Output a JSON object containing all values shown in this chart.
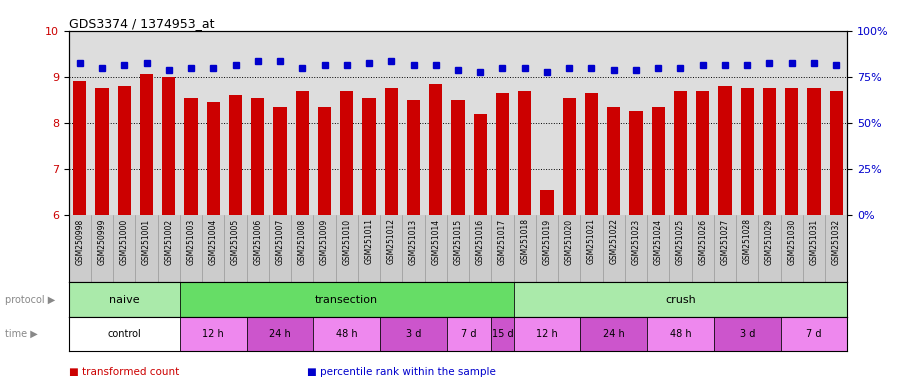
{
  "title": "GDS3374 / 1374953_at",
  "samples": [
    "GSM250998",
    "GSM250999",
    "GSM251000",
    "GSM251001",
    "GSM251002",
    "GSM251003",
    "GSM251004",
    "GSM251005",
    "GSM251006",
    "GSM251007",
    "GSM251008",
    "GSM251009",
    "GSM251010",
    "GSM251011",
    "GSM251012",
    "GSM251013",
    "GSM251014",
    "GSM251015",
    "GSM251016",
    "GSM251017",
    "GSM251018",
    "GSM251019",
    "GSM251020",
    "GSM251021",
    "GSM251022",
    "GSM251023",
    "GSM251024",
    "GSM251025",
    "GSM251026",
    "GSM251027",
    "GSM251028",
    "GSM251029",
    "GSM251030",
    "GSM251031",
    "GSM251032"
  ],
  "bar_values": [
    8.9,
    8.75,
    8.8,
    9.05,
    9.0,
    8.55,
    8.45,
    8.6,
    8.55,
    8.35,
    8.7,
    8.35,
    8.7,
    8.55,
    8.75,
    8.5,
    8.85,
    8.5,
    8.2,
    8.65,
    8.7,
    6.55,
    8.55,
    8.65,
    8.35,
    8.25,
    8.35,
    8.7,
    8.7,
    8.8,
    8.75,
    8.75,
    8.75,
    8.75,
    8.7
  ],
  "dot_values": [
    9.3,
    9.2,
    9.25,
    9.3,
    9.15,
    9.2,
    9.2,
    9.25,
    9.35,
    9.35,
    9.2,
    9.25,
    9.25,
    9.3,
    9.35,
    9.25,
    9.25,
    9.15,
    9.1,
    9.2,
    9.2,
    9.1,
    9.2,
    9.2,
    9.15,
    9.15,
    9.2,
    9.2,
    9.25,
    9.25,
    9.25,
    9.3,
    9.3,
    9.3,
    9.25
  ],
  "bar_color": "#cc0000",
  "dot_color": "#0000cc",
  "ylim_left": [
    6,
    10
  ],
  "ylim_right": [
    0,
    100
  ],
  "yticks_left": [
    6,
    7,
    8,
    9,
    10
  ],
  "yticks_right": [
    0,
    25,
    50,
    75,
    100
  ],
  "protocol_sections": [
    {
      "label": "naive",
      "start": 0,
      "end": 5,
      "color": "#aaeaaa"
    },
    {
      "label": "transection",
      "start": 5,
      "end": 20,
      "color": "#66dd66"
    },
    {
      "label": "crush",
      "start": 20,
      "end": 35,
      "color": "#aaeaaa"
    }
  ],
  "time_sections": [
    {
      "label": "control",
      "start": 0,
      "end": 5,
      "color": "#ffffff"
    },
    {
      "label": "12 h",
      "start": 5,
      "end": 8,
      "color": "#ee88ee"
    },
    {
      "label": "24 h",
      "start": 8,
      "end": 11,
      "color": "#cc55cc"
    },
    {
      "label": "48 h",
      "start": 11,
      "end": 14,
      "color": "#ee88ee"
    },
    {
      "label": "3 d",
      "start": 14,
      "end": 17,
      "color": "#cc55cc"
    },
    {
      "label": "7 d",
      "start": 17,
      "end": 19,
      "color": "#ee88ee"
    },
    {
      "label": "15 d",
      "start": 19,
      "end": 20,
      "color": "#cc55cc"
    },
    {
      "label": "12 h",
      "start": 20,
      "end": 23,
      "color": "#ee88ee"
    },
    {
      "label": "24 h",
      "start": 23,
      "end": 26,
      "color": "#cc55cc"
    },
    {
      "label": "48 h",
      "start": 26,
      "end": 29,
      "color": "#ee88ee"
    },
    {
      "label": "3 d",
      "start": 29,
      "end": 32,
      "color": "#cc55cc"
    },
    {
      "label": "7 d",
      "start": 32,
      "end": 35,
      "color": "#ee88ee"
    }
  ],
  "legend_items": [
    {
      "label": "transformed count",
      "color": "#cc0000"
    },
    {
      "label": "percentile rank within the sample",
      "color": "#0000cc"
    }
  ],
  "plot_bg": "#dddddd",
  "xtick_bg": "#cccccc"
}
